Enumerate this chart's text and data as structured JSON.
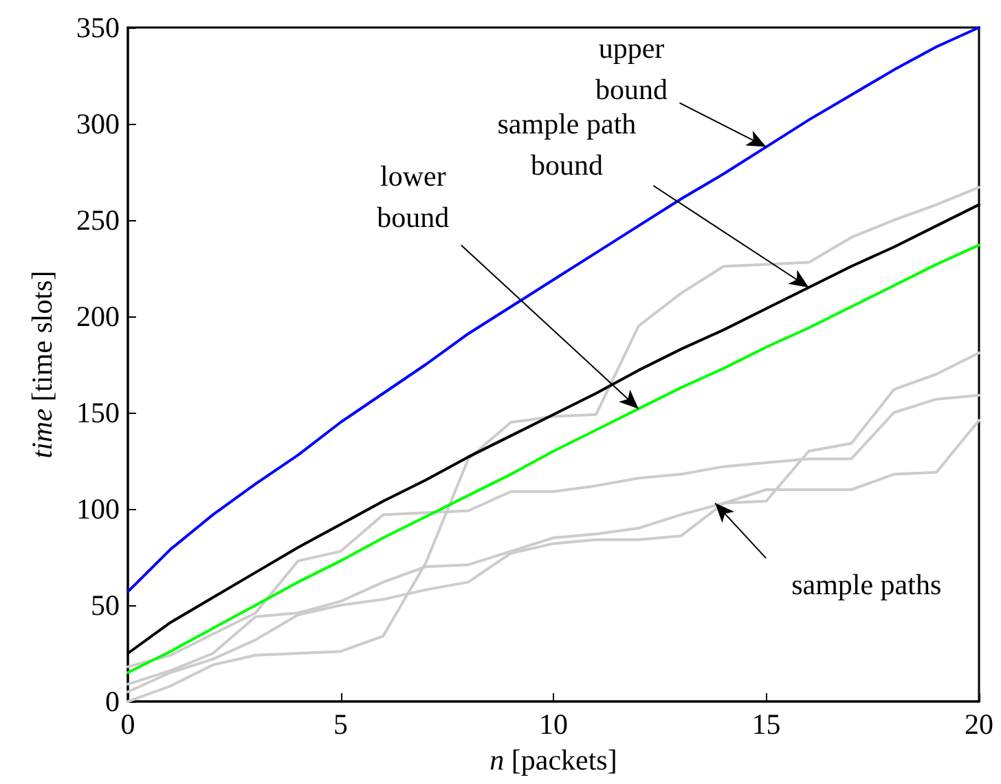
{
  "chart_data": {
    "type": "line",
    "xlabel": "n [packets]",
    "ylabel": "time [time slots]",
    "x": [
      0,
      1,
      2,
      3,
      4,
      5,
      6,
      7,
      8,
      9,
      10,
      11,
      12,
      13,
      14,
      15,
      16,
      17,
      18,
      19,
      20
    ],
    "xlim": [
      0,
      20
    ],
    "xticks": [
      0,
      5,
      10,
      15,
      20
    ],
    "ylim": [
      0,
      350
    ],
    "yticks": [
      0,
      50,
      100,
      150,
      200,
      250,
      300,
      350
    ],
    "grid": false,
    "marker": "none",
    "line_style": "solid",
    "series": [
      {
        "color": "#cccccc",
        "values": [
          0,
          8,
          19,
          24,
          25,
          26,
          34,
          72,
          126,
          145,
          148,
          149,
          195,
          212,
          226,
          227,
          228,
          241,
          250,
          258,
          267
        ]
      },
      {
        "color": "#cccccc",
        "values": [
          18,
          24,
          35,
          46,
          73,
          78,
          97,
          98,
          99,
          109,
          109,
          112,
          116,
          118,
          122,
          124,
          126,
          126,
          150,
          157,
          159
        ]
      },
      {
        "color": "#cccccc",
        "values": [
          5,
          15,
          22,
          32,
          45,
          50,
          53,
          58,
          62,
          77,
          82,
          84,
          84,
          86,
          103,
          104,
          130,
          134,
          162,
          170,
          181
        ]
      },
      {
        "color": "#cccccc",
        "values": [
          9,
          16,
          25,
          44,
          46,
          52,
          62,
          70,
          71,
          78,
          85,
          87,
          90,
          97,
          103,
          110,
          110,
          110,
          118,
          119,
          146
        ]
      },
      {
        "color": "#0000ff",
        "values": [
          57,
          79,
          97,
          113,
          128,
          145,
          160,
          175,
          191,
          205,
          219,
          233,
          247,
          261,
          274,
          288,
          302,
          315,
          328,
          340,
          350
        ]
      },
      {
        "color": "#000000",
        "values": [
          25,
          41,
          54,
          67,
          80,
          92,
          104,
          115,
          127,
          138,
          149,
          160,
          172,
          183,
          193,
          204,
          215,
          226,
          236,
          247,
          258
        ]
      },
      {
        "color": "#00ff00",
        "values": [
          15,
          26,
          38,
          50,
          62,
          73,
          85,
          96,
          107,
          118,
          130,
          141,
          152,
          163,
          173,
          184,
          194,
          205,
          216,
          227,
          237
        ]
      }
    ],
    "annotations": [
      {
        "text": "upper\nbound",
        "x": 15,
        "y": 288
      },
      {
        "text": "sample path\nbound",
        "x": 16,
        "y": 215
      },
      {
        "text": "lower\nbound",
        "x": 12,
        "y": 152
      },
      {
        "text": "sample paths",
        "x": 13.8,
        "y": 103
      }
    ]
  }
}
